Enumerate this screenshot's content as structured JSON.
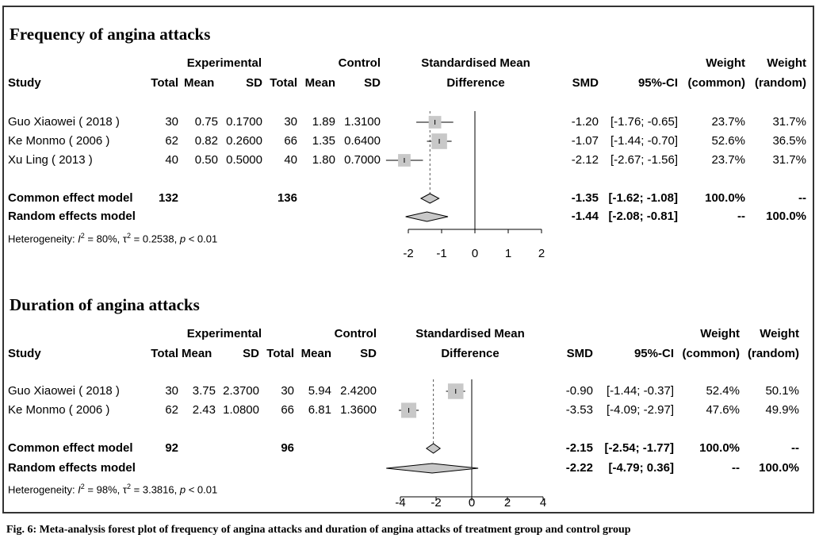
{
  "chart_data": [
    {
      "type": "forest",
      "title": "Frequency of angina attacks",
      "header": {
        "experimental": "Experimental",
        "control": "Control",
        "smd_plot": [
          "Standardised Mean",
          "Difference"
        ],
        "study": "Study",
        "total": "Total",
        "mean": "Mean",
        "sd": "SD",
        "smd": "SMD",
        "ci": "95%-CI",
        "weight": "Weight",
        "common": "(common)",
        "random": "(random)"
      },
      "studies": [
        {
          "name": "Guo Xiaowei ( 2018 )",
          "e_total": "30",
          "e_mean": "0.75",
          "e_sd": "0.1700",
          "c_total": "30",
          "c_mean": "1.89",
          "c_sd": "1.3100",
          "smd": -1.2,
          "lo": -1.76,
          "hi": -0.65,
          "smd_text": "-1.20",
          "ci_text": "[-1.76; -0.65]",
          "w_common": "23.7%",
          "w_random": "31.7%",
          "box": 23.7
        },
        {
          "name": "Ke Monmo ( 2006 )",
          "e_total": "62",
          "e_mean": "0.82",
          "e_sd": "0.2600",
          "c_total": "66",
          "c_mean": "1.35",
          "c_sd": "0.6400",
          "smd": -1.07,
          "lo": -1.44,
          "hi": -0.7,
          "smd_text": "-1.07",
          "ci_text": "[-1.44; -0.70]",
          "w_common": "52.6%",
          "w_random": "36.5%",
          "box": 52.6
        },
        {
          "name": "Xu Ling ( 2013 )",
          "e_total": "40",
          "e_mean": "0.50",
          "e_sd": "0.5000",
          "c_total": "40",
          "c_mean": "1.80",
          "c_sd": "0.7000",
          "smd": -2.12,
          "lo": -2.67,
          "hi": -1.56,
          "smd_text": "-2.12",
          "ci_text": "[-2.67; -1.56]",
          "w_common": "23.7%",
          "w_random": "31.7%",
          "box": 23.7
        }
      ],
      "common": {
        "label": "Common effect model",
        "e_total": "132",
        "c_total": "136",
        "smd": -1.35,
        "lo": -1.62,
        "hi": -1.08,
        "smd_text": "-1.35",
        "ci_text": "[-1.62; -1.08]",
        "w_common": "100.0%",
        "w_random": "--"
      },
      "random": {
        "label": "Random effects model",
        "smd": -1.44,
        "lo": -2.08,
        "hi": -0.81,
        "smd_text": "-1.44",
        "ci_text": "[-2.08; -0.81]",
        "w_common": "--",
        "w_random": "100.0%"
      },
      "heterogeneity": {
        "prefix": "Heterogeneity: ",
        "I": "I",
        "i2": " = 80%, ",
        "tau": "τ",
        "t2": " = 0.2538, ",
        "p": "p",
        "pval": " < 0.01"
      },
      "xlim": [
        -2,
        2
      ],
      "xticks": [
        -2,
        -1,
        0,
        1,
        2
      ]
    },
    {
      "type": "forest",
      "title": "Duration of angina attacks",
      "header": {
        "experimental": "Experimental",
        "control": "Control",
        "smd_plot": [
          "Standardised Mean",
          "Difference"
        ],
        "study": "Study",
        "total": "Total",
        "mean": "Mean",
        "sd": "SD",
        "smd": "SMD",
        "ci": "95%-CI",
        "weight": "Weight",
        "common": "(common)",
        "random": "(random)"
      },
      "studies": [
        {
          "name": "Guo Xiaowei ( 2018 )",
          "e_total": "30",
          "e_mean": "3.75",
          "e_sd": "2.3700",
          "c_total": "30",
          "c_mean": "5.94",
          "c_sd": "2.4200",
          "smd": -0.9,
          "lo": -1.44,
          "hi": -0.37,
          "smd_text": "-0.90",
          "ci_text": "[-1.44; -0.37]",
          "w_common": "52.4%",
          "w_random": "50.1%",
          "box": 52.4
        },
        {
          "name": "Ke Monmo ( 2006 )",
          "e_total": "62",
          "e_mean": "2.43",
          "e_sd": "1.0800",
          "c_total": "66",
          "c_mean": "6.81",
          "c_sd": "1.3600",
          "smd": -3.53,
          "lo": -4.09,
          "hi": -2.97,
          "smd_text": "-3.53",
          "ci_text": "[-4.09; -2.97]",
          "w_common": "47.6%",
          "w_random": "49.9%",
          "box": 47.6
        }
      ],
      "common": {
        "label": "Common effect model",
        "e_total": "92",
        "c_total": "96",
        "smd": -2.15,
        "lo": -2.54,
        "hi": -1.77,
        "smd_text": "-2.15",
        "ci_text": "[-2.54; -1.77]",
        "w_common": "100.0%",
        "w_random": "--"
      },
      "random": {
        "label": "Random effects model",
        "smd": -2.22,
        "lo": -4.79,
        "hi": 0.36,
        "smd_text": "-2.22",
        "ci_text": "[-4.79; 0.36]",
        "w_common": "--",
        "w_random": "100.0%"
      },
      "heterogeneity": {
        "prefix": "Heterogeneity: ",
        "I": "I",
        "i2": " = 98%, ",
        "tau": "τ",
        "t2": " = 3.3816, ",
        "p": "p",
        "pval": " < 0.01"
      },
      "xlim": [
        -4,
        4
      ],
      "xticks": [
        -4,
        -2,
        0,
        2,
        4
      ]
    }
  ],
  "caption": "Fig. 6: Meta-analysis forest plot of frequency of angina attacks and duration of angina attacks of treatment group and control group"
}
